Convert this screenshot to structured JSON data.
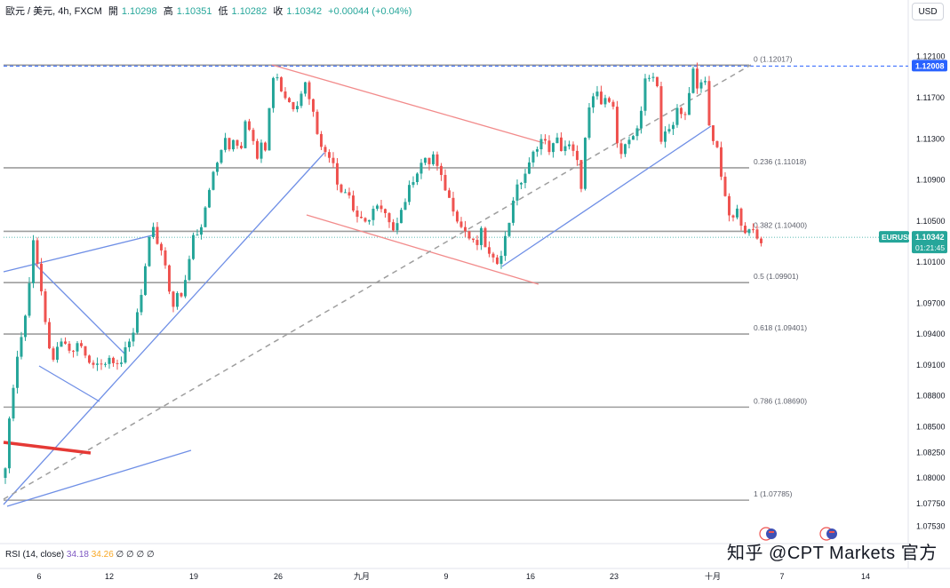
{
  "header": {
    "symbol": "歐元 / 美元, 4h, FXCM",
    "open_label": "開",
    "open": "1.10298",
    "high_label": "高",
    "high": "1.10351",
    "low_label": "低",
    "low": "1.10282",
    "close_label": "收",
    "close": "1.10342",
    "change": "+0.00044 (+0.04%)"
  },
  "currency_button": "USD",
  "rsi_label": {
    "name": "RSI (14, close)",
    "v1": "34.18",
    "v2": "34.26",
    "rest": "∅ ∅ ∅ ∅"
  },
  "watermark": "知乎 @CPT Markets 官方",
  "colors": {
    "up": "#26a69a",
    "down": "#ef5350",
    "fib": "#9e9e9e",
    "trend_blue": "#6f8fe6",
    "channel_red": "#f28b8b",
    "badge_blue": "#2962ff"
  },
  "chart_data": {
    "type": "candlestick",
    "symbol": "EURUSD",
    "timeframe": "4h",
    "x_ticks": [
      "6",
      "12",
      "19",
      "26",
      "九月",
      "9",
      "16",
      "23",
      "十月",
      "7",
      "14"
    ],
    "y_ticks": [
      "1.12100",
      "1.11700",
      "1.11300",
      "1.10900",
      "1.10500",
      "1.10100",
      "1.09700",
      "1.09400",
      "1.09100",
      "1.08800",
      "1.08500",
      "1.08250",
      "1.08000",
      "1.07750",
      "1.07530"
    ],
    "ylim": [
      1.0738,
      1.1246
    ],
    "fib_levels": [
      {
        "label": "0 (1.12017)",
        "value": 1.12017
      },
      {
        "label": "0.236 (1.11018)",
        "value": 1.11018
      },
      {
        "label": "0.382 (1.10400)",
        "value": 1.104
      },
      {
        "label": "0.5 (1.09901)",
        "value": 1.09901
      },
      {
        "label": "0.618 (1.09401)",
        "value": 1.09401
      },
      {
        "label": "0.786 (1.08690)",
        "value": 1.0869
      },
      {
        "label": "1 (1.07785)",
        "value": 1.07785
      }
    ],
    "price_badges": [
      {
        "label": "1.12008",
        "value": 1.12008
      },
      {
        "label": "EURUSD",
        "value": 1.10342
      },
      {
        "label": "1.10342",
        "value": 1.10342
      },
      {
        "label": "01:21:45",
        "value": 1.10342
      }
    ],
    "close_path": [
      [
        0,
        1.0781
      ],
      [
        5,
        1.0805
      ],
      [
        10,
        1.085
      ],
      [
        16,
        1.09
      ],
      [
        22,
        1.093
      ],
      [
        28,
        1.0955
      ],
      [
        34,
        1.0995
      ],
      [
        38,
        1.104
      ],
      [
        42,
        1.101
      ],
      [
        46,
        1.0985
      ],
      [
        50,
        1.0955
      ],
      [
        54,
        1.0925
      ],
      [
        60,
        1.0918
      ],
      [
        66,
        1.0925
      ],
      [
        72,
        1.0935
      ],
      [
        78,
        1.092
      ],
      [
        84,
        1.0925
      ],
      [
        90,
        1.0935
      ],
      [
        95,
        1.0918
      ],
      [
        100,
        1.0912
      ],
      [
        106,
        1.0908
      ],
      [
        112,
        1.0915
      ],
      [
        118,
        1.0912
      ],
      [
        124,
        1.0918
      ],
      [
        130,
        1.0915
      ],
      [
        136,
        1.0912
      ],
      [
        142,
        1.0925
      ],
      [
        148,
        1.0935
      ],
      [
        154,
        1.096
      ],
      [
        160,
        1.0985
      ],
      [
        166,
        1.102
      ],
      [
        171,
        1.1045
      ],
      [
        176,
        1.103
      ],
      [
        182,
        1.1018
      ],
      [
        188,
        1.1
      ],
      [
        193,
        1.0955
      ],
      [
        198,
        1.0985
      ],
      [
        204,
        1.0975
      ],
      [
        210,
        1.0995
      ],
      [
        216,
        1.1035
      ],
      [
        222,
        1.104
      ],
      [
        228,
        1.105
      ],
      [
        234,
        1.108
      ],
      [
        240,
        1.1095
      ],
      [
        246,
        1.111
      ],
      [
        252,
        1.113
      ],
      [
        258,
        1.112
      ],
      [
        264,
        1.1135
      ],
      [
        270,
        1.1115
      ],
      [
        276,
        1.115
      ],
      [
        282,
        1.114
      ],
      [
        288,
        1.111
      ],
      [
        294,
        1.113
      ],
      [
        300,
        1.112
      ],
      [
        305,
        1.1185
      ],
      [
        310,
        1.1198
      ],
      [
        315,
        1.118
      ],
      [
        320,
        1.1172
      ],
      [
        326,
        1.1165
      ],
      [
        332,
        1.116
      ],
      [
        338,
        1.1175
      ],
      [
        344,
        1.1185
      ],
      [
        350,
        1.1165
      ],
      [
        356,
        1.114
      ],
      [
        362,
        1.1125
      ],
      [
        368,
        1.111
      ],
      [
        374,
        1.1115
      ],
      [
        380,
        1.1085
      ],
      [
        386,
        1.108
      ],
      [
        392,
        1.1078
      ],
      [
        398,
        1.106
      ],
      [
        404,
        1.1052
      ],
      [
        410,
        1.1045
      ],
      [
        416,
        1.1055
      ],
      [
        422,
        1.1065
      ],
      [
        428,
        1.106
      ],
      [
        434,
        1.1055
      ],
      [
        440,
        1.104
      ],
      [
        446,
        1.105
      ],
      [
        452,
        1.1062
      ],
      [
        458,
        1.1075
      ],
      [
        464,
        1.109
      ],
      [
        470,
        1.11
      ],
      [
        476,
        1.111
      ],
      [
        482,
        1.1105
      ],
      [
        488,
        1.1115
      ],
      [
        494,
        1.1095
      ],
      [
        500,
        1.1085
      ],
      [
        506,
        1.107
      ],
      [
        512,
        1.106
      ],
      [
        518,
        1.1045
      ],
      [
        524,
        1.104
      ],
      [
        530,
        1.103
      ],
      [
        536,
        1.1025
      ],
      [
        542,
        1.104
      ],
      [
        548,
        1.102
      ],
      [
        554,
        1.101
      ],
      [
        560,
        1.1012
      ],
      [
        566,
        1.1025
      ],
      [
        572,
        1.1045
      ],
      [
        578,
        1.1075
      ],
      [
        584,
        1.1085
      ],
      [
        590,
        1.1095
      ],
      [
        596,
        1.1105
      ],
      [
        602,
        1.112
      ],
      [
        608,
        1.113
      ],
      [
        614,
        1.1125
      ],
      [
        620,
        1.1118
      ],
      [
        626,
        1.113
      ],
      [
        632,
        1.112
      ],
      [
        638,
        1.1125
      ],
      [
        644,
        1.1118
      ],
      [
        650,
        1.1105
      ],
      [
        655,
        1.108
      ],
      [
        660,
        1.115
      ],
      [
        666,
        1.1165
      ],
      [
        672,
        1.1175
      ],
      [
        678,
        1.116
      ],
      [
        684,
        1.1172
      ],
      [
        690,
        1.1165
      ],
      [
        696,
        1.111
      ],
      [
        702,
        1.112
      ],
      [
        708,
        1.1125
      ],
      [
        714,
        1.1135
      ],
      [
        720,
        1.115
      ],
      [
        726,
        1.1185
      ],
      [
        732,
        1.119
      ],
      [
        738,
        1.1198
      ],
      [
        744,
        1.113
      ],
      [
        750,
        1.114
      ],
      [
        756,
        1.1135
      ],
      [
        762,
        1.116
      ],
      [
        768,
        1.115
      ],
      [
        774,
        1.1165
      ],
      [
        780,
        1.1195
      ],
      [
        786,
        1.117
      ],
      [
        792,
        1.12
      ],
      [
        797,
        1.115
      ],
      [
        802,
        1.113
      ],
      [
        808,
        1.1115
      ],
      [
        814,
        1.108
      ],
      [
        818,
        1.106
      ],
      [
        824,
        1.105
      ],
      [
        830,
        1.106
      ],
      [
        836,
        1.1045
      ],
      [
        842,
        1.1038
      ],
      [
        848,
        1.104
      ],
      [
        854,
        1.103
      ],
      [
        860,
        1.1034
      ]
    ]
  }
}
